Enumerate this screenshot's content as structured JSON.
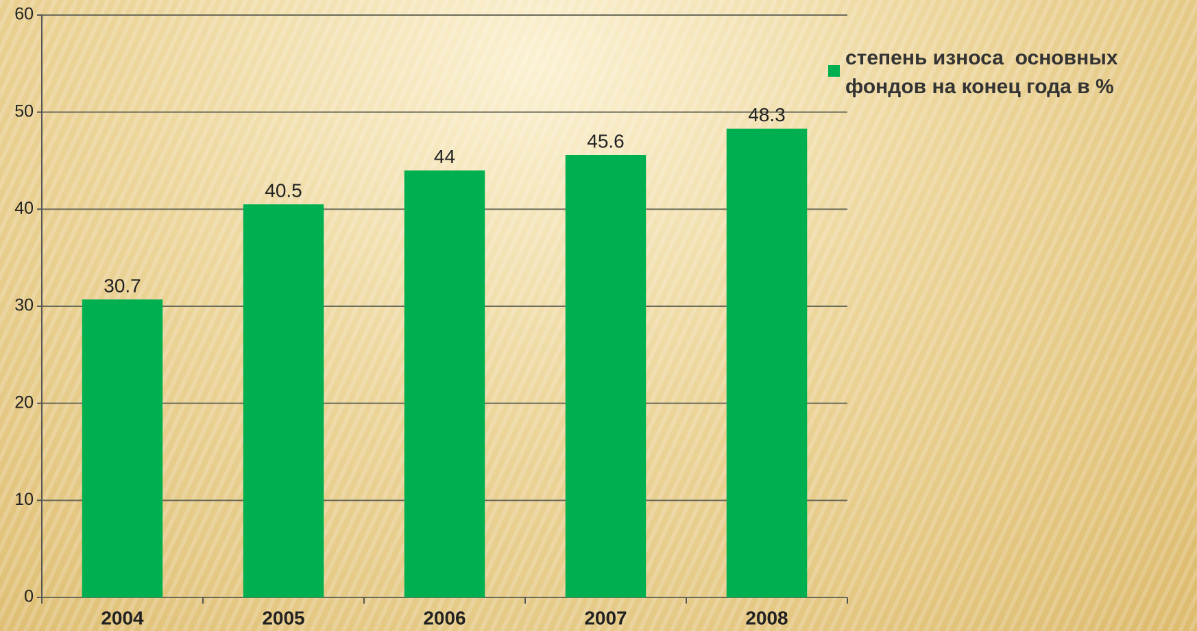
{
  "chart_data": {
    "type": "bar",
    "categories": [
      "2004",
      "2005",
      "2006",
      "2007",
      "2008"
    ],
    "series": [
      {
        "name": "степень износа  основных фондов на конец года в %",
        "color": "#00b050",
        "values": [
          30.7,
          40.5,
          44,
          45.6,
          48.3
        ]
      }
    ],
    "ylim": [
      0,
      60
    ],
    "yticks": [
      0,
      10,
      20,
      30,
      40,
      50,
      60
    ],
    "grid": true,
    "legend": "right"
  }
}
